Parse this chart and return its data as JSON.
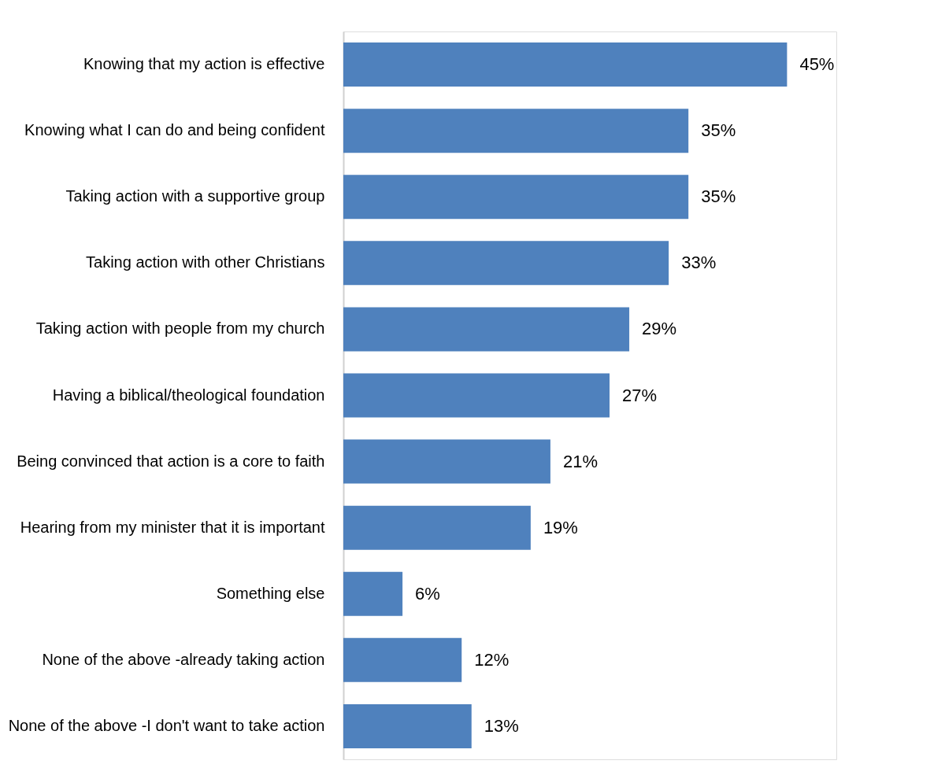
{
  "chart_data": {
    "type": "bar",
    "orientation": "horizontal",
    "categories": [
      "Knowing that my action is effective",
      "Knowing what I can do and being confident",
      "Taking action with a supportive group",
      "Taking action with other Christians",
      "Taking action with people from my church",
      "Having a biblical/theological foundation",
      "Being convinced that action is a core to faith",
      "Hearing from my minister that it is important",
      "Something else",
      "None of the above -already taking action",
      "None of the above -I don't want to take action"
    ],
    "values": [
      45,
      35,
      35,
      33,
      29,
      27,
      21,
      19,
      6,
      12,
      13
    ],
    "value_labels": [
      "45%",
      "35%",
      "35%",
      "33%",
      "29%",
      "27%",
      "21%",
      "19%",
      "6%",
      "12%",
      "13%"
    ],
    "color": "#4f81bd",
    "xlim": [
      0,
      50
    ],
    "tick_labels": "y",
    "grid": false
  }
}
